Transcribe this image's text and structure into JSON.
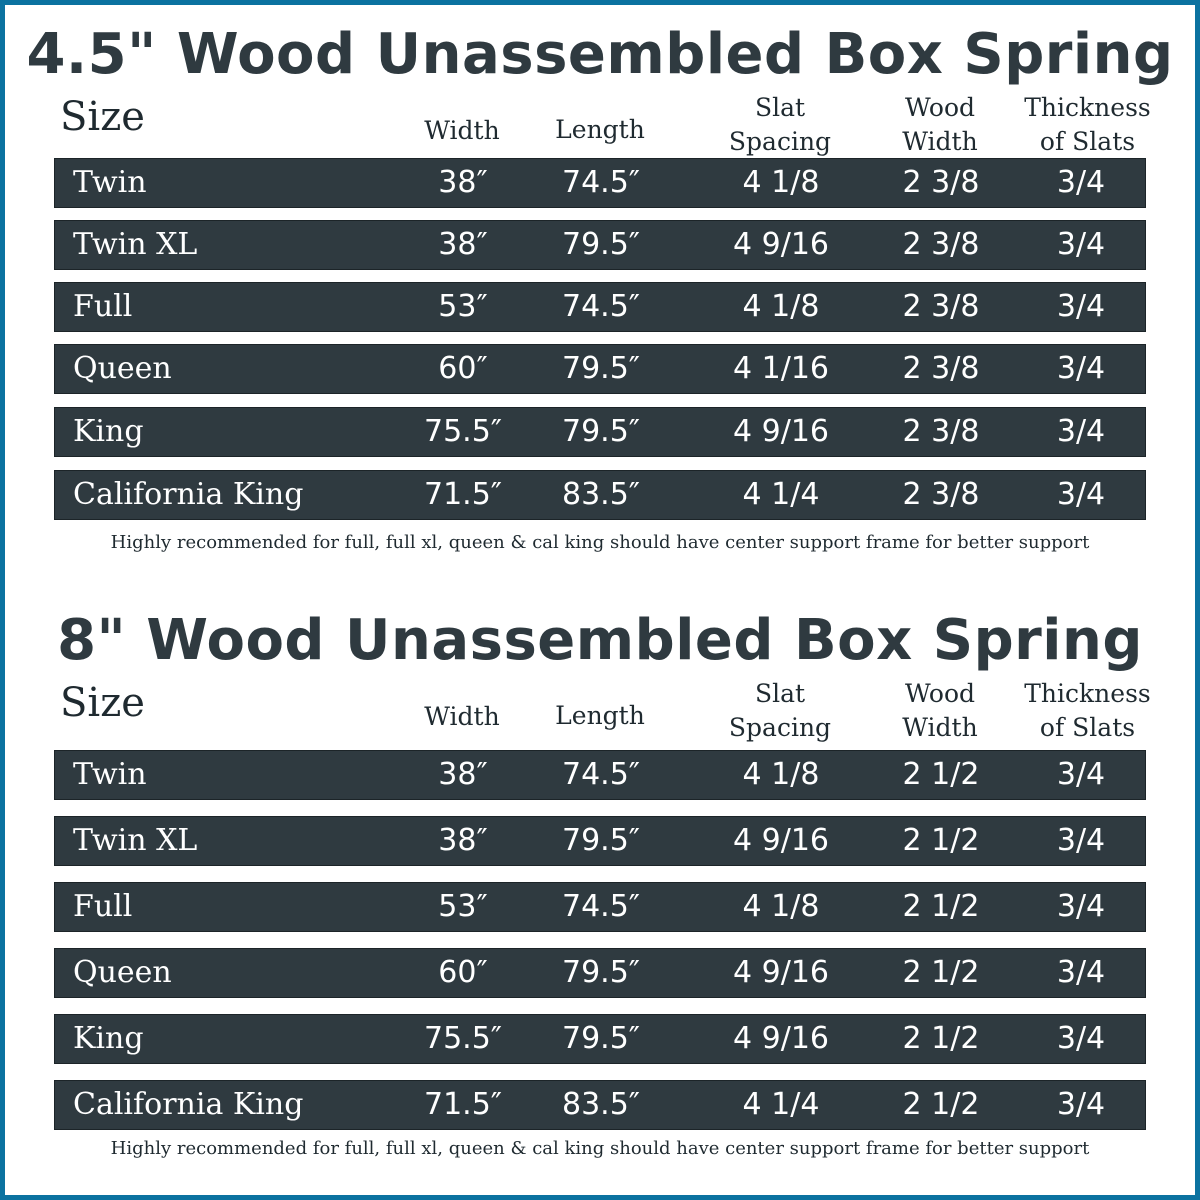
{
  "colors": {
    "border": "#0b72a0",
    "row_bg": "#2f3a40",
    "title": "#2f3a40"
  },
  "headers": {
    "size": "Size",
    "width": "Width",
    "length": "Length",
    "slat_1": "Slat",
    "slat_2": "Spacing",
    "wood_1": "Wood",
    "wood_2": "Width",
    "thick_1": "Thickness",
    "thick_2": "of Slats"
  },
  "tables": [
    {
      "title": "4.5\" Wood Unassembled Box Spring",
      "rows": [
        {
          "size": "Twin",
          "width": "38″",
          "length": "74.5″",
          "slat": "4 1/8",
          "wood": "2 3/8",
          "thick": "3/4"
        },
        {
          "size": "Twin XL",
          "width": "38″",
          "length": "79.5″",
          "slat": "4 9/16",
          "wood": "2 3/8",
          "thick": "3/4"
        },
        {
          "size": "Full",
          "width": "53″",
          "length": "74.5″",
          "slat": "4 1/8",
          "wood": "2 3/8",
          "thick": "3/4"
        },
        {
          "size": "Queen",
          "width": "60″",
          "length": "79.5″",
          "slat": "4 1/16",
          "wood": "2 3/8",
          "thick": "3/4"
        },
        {
          "size": "King",
          "width": "75.5″",
          "length": "79.5″",
          "slat": "4 9/16",
          "wood": "2 3/8",
          "thick": "3/4"
        },
        {
          "size": "California King",
          "width": "71.5″",
          "length": "83.5″",
          "slat": "4 1/4",
          "wood": "2 3/8",
          "thick": "3/4"
        }
      ],
      "note": "Highly recommended for full, full xl, queen & cal king should have center support frame  for better support"
    },
    {
      "title": "8\" Wood Unassembled Box Spring",
      "rows": [
        {
          "size": "Twin",
          "width": "38″",
          "length": "74.5″",
          "slat": "4 1/8",
          "wood": "2 1/2",
          "thick": "3/4"
        },
        {
          "size": "Twin XL",
          "width": "38″",
          "length": "79.5″",
          "slat": "4 9/16",
          "wood": "2 1/2",
          "thick": "3/4"
        },
        {
          "size": "Full",
          "width": "53″",
          "length": "74.5″",
          "slat": "4 1/8",
          "wood": "2 1/2",
          "thick": "3/4"
        },
        {
          "size": "Queen",
          "width": "60″",
          "length": "79.5″",
          "slat": "4 9/16",
          "wood": "2 1/2",
          "thick": "3/4"
        },
        {
          "size": "King",
          "width": "75.5″",
          "length": "79.5″",
          "slat": "4 9/16",
          "wood": "2 1/2",
          "thick": "3/4"
        },
        {
          "size": "California King",
          "width": "71.5″",
          "length": "83.5″",
          "slat": "4 1/4",
          "wood": "2 1/2",
          "thick": "3/4"
        }
      ],
      "note": "Highly recommended for full, full xl, queen & cal king should have center support frame  for better support"
    }
  ]
}
